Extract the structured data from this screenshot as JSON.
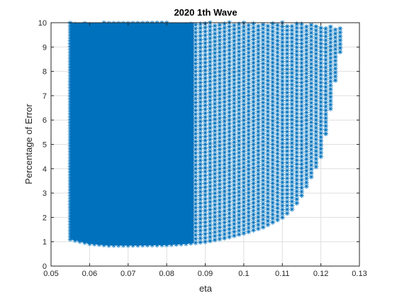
{
  "chart_data": {
    "type": "scatter",
    "title": "2020 1th Wave",
    "xlabel": "eta",
    "ylabel": "Percentage of Error",
    "xlim": [
      0.05,
      0.13
    ],
    "ylim": [
      0,
      10
    ],
    "xticks": [
      "0.05",
      "0.06",
      "0.07",
      "0.08",
      "0.09",
      "0.1",
      "0.11",
      "0.12",
      "0.13"
    ],
    "yticks": [
      "0",
      "1",
      "2",
      "3",
      "4",
      "5",
      "6",
      "7",
      "8",
      "9",
      "10"
    ],
    "grid": true,
    "marker": "*",
    "color": "#0072BD",
    "series": [
      {
        "x_range": [
          0.055,
          0.125
        ],
        "lower_envelope": {
          "x": [
            0.055,
            0.06,
            0.065,
            0.07,
            0.075,
            0.08,
            0.085,
            0.09,
            0.095,
            0.1,
            0.105,
            0.11,
            0.113,
            0.115,
            0.117,
            0.12,
            0.122,
            0.125
          ],
          "y": [
            1.1,
            0.92,
            0.85,
            0.85,
            0.86,
            0.87,
            0.92,
            1.0,
            1.15,
            1.35,
            1.6,
            2.0,
            2.4,
            2.9,
            3.5,
            4.5,
            6.0,
            8.8
          ]
        },
        "upper_envelope": {
          "x": [
            0.055,
            0.1,
            0.11,
            0.115,
            0.12,
            0.125
          ],
          "y": [
            10.0,
            10.0,
            10.0,
            9.95,
            9.9,
            9.8
          ]
        },
        "dense_region_xmax": 0.087
      }
    ]
  }
}
